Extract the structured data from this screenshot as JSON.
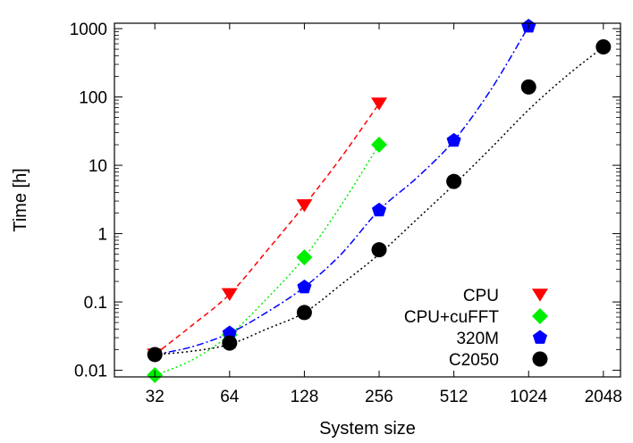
{
  "chart_data": {
    "type": "scatter",
    "xlabel": "System size",
    "ylabel": "Time [h]",
    "x_scale": "log2",
    "y_scale": "log10",
    "xlim": [
      22,
      2400
    ],
    "ylim": [
      0.008,
      1200
    ],
    "x_ticks": [
      32,
      64,
      128,
      256,
      512,
      1024,
      2048
    ],
    "x_tick_labels": [
      "32",
      "64",
      "128",
      "256",
      "512",
      "1024",
      "2048"
    ],
    "y_ticks": [
      0.01,
      0.1,
      1,
      10,
      100,
      1000
    ],
    "y_tick_labels": [
      "0.01",
      "0.1",
      "1",
      "10",
      "100",
      "1000"
    ],
    "grid": false,
    "legend_position": "bottom-right",
    "series": [
      {
        "name": "CPU",
        "marker": "triangle-down",
        "color": "#ff0000",
        "line_style": "dashed",
        "points": [
          [
            32,
            0.017
          ],
          [
            64,
            0.13
          ],
          [
            128,
            2.6
          ],
          [
            256,
            80
          ]
        ],
        "fit": [
          [
            32,
            0.017
          ],
          [
            45,
            0.045
          ],
          [
            64,
            0.13
          ],
          [
            90,
            0.55
          ],
          [
            128,
            2.6
          ],
          [
            180,
            13
          ],
          [
            256,
            80
          ]
        ]
      },
      {
        "name": "CPU+cuFFT",
        "marker": "diamond",
        "color": "#00ee00",
        "line_style": "dotted",
        "points": [
          [
            32,
            0.0085
          ],
          [
            64,
            0.033
          ],
          [
            128,
            0.45
          ],
          [
            256,
            20
          ]
        ],
        "fit": [
          [
            32,
            0.0085
          ],
          [
            45,
            0.014
          ],
          [
            64,
            0.033
          ],
          [
            90,
            0.11
          ],
          [
            128,
            0.45
          ],
          [
            180,
            2.6
          ],
          [
            256,
            20
          ]
        ]
      },
      {
        "name": "320M",
        "marker": "pentagon",
        "color": "#0000ff",
        "line_style": "dash-dot",
        "points": [
          [
            32,
            0.017
          ],
          [
            64,
            0.035
          ],
          [
            128,
            0.165
          ],
          [
            256,
            2.2
          ],
          [
            512,
            23
          ],
          [
            1024,
            1080
          ]
        ],
        "fit": [
          [
            32,
            0.017
          ],
          [
            45,
            0.022
          ],
          [
            64,
            0.035
          ],
          [
            90,
            0.07
          ],
          [
            128,
            0.165
          ],
          [
            180,
            0.5
          ],
          [
            256,
            2.2
          ],
          [
            362,
            6.5
          ],
          [
            512,
            23
          ],
          [
            724,
            130
          ],
          [
            1024,
            1080
          ]
        ]
      },
      {
        "name": "C2050",
        "marker": "circle",
        "color": "#000000",
        "line_style": "dotted",
        "points": [
          [
            32,
            0.017
          ],
          [
            64,
            0.025
          ],
          [
            128,
            0.07
          ],
          [
            256,
            0.58
          ],
          [
            512,
            5.8
          ],
          [
            1024,
            140
          ],
          [
            2048,
            540
          ]
        ],
        "fit": [
          [
            32,
            0.017
          ],
          [
            45,
            0.019
          ],
          [
            64,
            0.024
          ],
          [
            90,
            0.04
          ],
          [
            128,
            0.07
          ],
          [
            180,
            0.18
          ],
          [
            256,
            0.5
          ],
          [
            362,
            1.6
          ],
          [
            512,
            5.2
          ],
          [
            724,
            18
          ],
          [
            1024,
            65
          ],
          [
            1448,
            200
          ],
          [
            2048,
            540
          ]
        ]
      }
    ]
  }
}
